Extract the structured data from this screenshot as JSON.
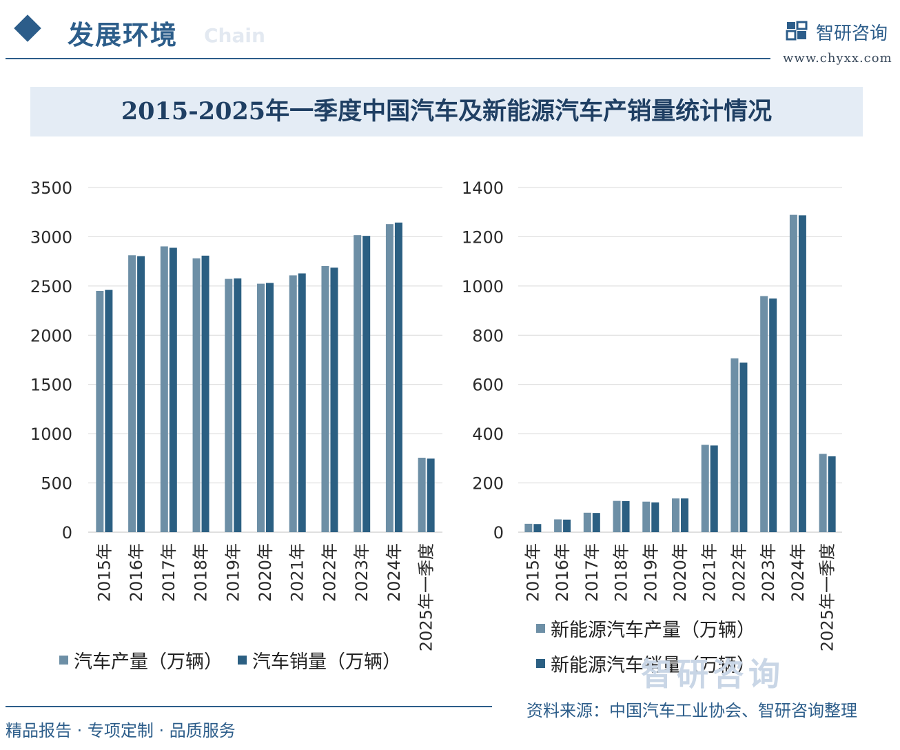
{
  "header": {
    "section_title": "发展环境",
    "section_subtitle": "Chain",
    "brand_name": "智研咨询",
    "brand_url": "www.chyxx.com"
  },
  "title": "2015-2025年一季度中国汽车及新能源汽车产销量统计情况",
  "source": "资料来源：中国汽车工业协会、智研咨询整理",
  "footer": {
    "slogan": "精品报告 · 专项定制 · 品质服务"
  },
  "watermark": "智研咨询",
  "colors": {
    "production": "#6d8fa6",
    "sales": "#2b5f82",
    "grid": "#d9d9d9",
    "accent": "#2c5d8a"
  },
  "chart_data": [
    {
      "type": "bar",
      "categories": [
        "2015年",
        "2016年",
        "2017年",
        "2018年",
        "2019年",
        "2020年",
        "2021年",
        "2022年",
        "2023年",
        "2024年",
        "2025年一季度"
      ],
      "series": [
        {
          "name": "汽车产量（万辆）",
          "values": [
            2450,
            2812,
            2902,
            2781,
            2572,
            2523,
            2608,
            2702,
            3016,
            3128,
            756
          ]
        },
        {
          "name": "汽车销量（万辆）",
          "values": [
            2460,
            2803,
            2888,
            2808,
            2577,
            2531,
            2628,
            2686,
            3009,
            3144,
            747
          ]
        }
      ],
      "ylim": [
        0,
        3500
      ],
      "yticks": [
        0,
        500,
        1000,
        1500,
        2000,
        2500,
        3000,
        3500
      ],
      "grid": true,
      "legend": "bottom"
    },
    {
      "type": "bar",
      "categories": [
        "2015年",
        "2016年",
        "2017年",
        "2018年",
        "2019年",
        "2020年",
        "2021年",
        "2022年",
        "2023年",
        "2024年",
        "2025年一季度"
      ],
      "series": [
        {
          "name": "新能源汽车产量（万辆）",
          "values": [
            34,
            52,
            79,
            127,
            124,
            137,
            355,
            706,
            959,
            1289,
            318
          ]
        },
        {
          "name": "新能源汽车销量（万辆）",
          "values": [
            33,
            51,
            78,
            126,
            121,
            137,
            352,
            689,
            949,
            1287,
            308
          ]
        }
      ],
      "ylim": [
        0,
        1400
      ],
      "yticks": [
        0,
        200,
        400,
        600,
        800,
        1000,
        1200,
        1400
      ],
      "grid": true,
      "legend": "bottom"
    }
  ]
}
